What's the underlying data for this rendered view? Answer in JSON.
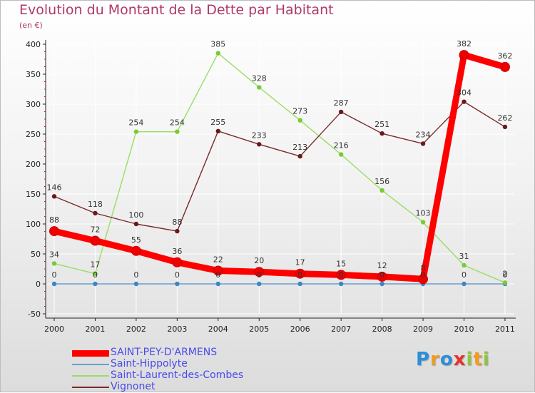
{
  "title": "Evolution du Montant de la Dette par Habitant",
  "unit_label": "(en €)",
  "logo": {
    "text": "Proxiti",
    "letter_colors": [
      "#2a8fd8",
      "#f39a1e",
      "#2a8fd8",
      "#e8322c",
      "#8cc63f",
      "#f39a1e",
      "#8cc63f"
    ]
  },
  "colors": {
    "axis": "#222222",
    "grid": "#ffffff",
    "title": "#b0376a",
    "legend_text": "#4a4aee"
  },
  "chart_data": {
    "type": "line",
    "title": "Evolution du Montant de la Dette par Habitant",
    "ylabel": "(en €)",
    "x": [
      "2000",
      "2001",
      "2002",
      "2003",
      "2004",
      "2005",
      "2006",
      "2007",
      "2008",
      "2009",
      "2010",
      "2011"
    ],
    "ylim": [
      -50,
      400
    ],
    "yticks": [
      -50,
      0,
      50,
      100,
      150,
      200,
      250,
      300,
      350,
      400
    ],
    "grid": true,
    "legend_position": "bottom-left",
    "series": [
      {
        "name": "SAINT-PEY-D'ARMENS",
        "color": "#ff0000",
        "marker_color": "#ee0000",
        "emphasis": true,
        "values": [
          88,
          72,
          55,
          36,
          22,
          20,
          17,
          15,
          12,
          8,
          382,
          362
        ]
      },
      {
        "name": "Saint-Hippolyte",
        "color": "#6a9ed0",
        "marker_color": "#3d85c6",
        "emphasis": false,
        "values": [
          0,
          0,
          0,
          0,
          0,
          0,
          0,
          0,
          0,
          0,
          0,
          0
        ]
      },
      {
        "name": "Saint-Laurent-des-Combes",
        "color": "#99dd66",
        "marker_color": "#77cc33",
        "emphasis": false,
        "values": [
          34,
          17,
          254,
          254,
          385,
          328,
          273,
          216,
          156,
          103,
          31,
          2
        ]
      },
      {
        "name": "Vignonet",
        "color": "#7a2a2a",
        "marker_color": "#6a1a1a",
        "emphasis": false,
        "values": [
          146,
          118,
          100,
          88,
          255,
          233,
          213,
          287,
          251,
          234,
          304,
          262
        ]
      }
    ]
  }
}
